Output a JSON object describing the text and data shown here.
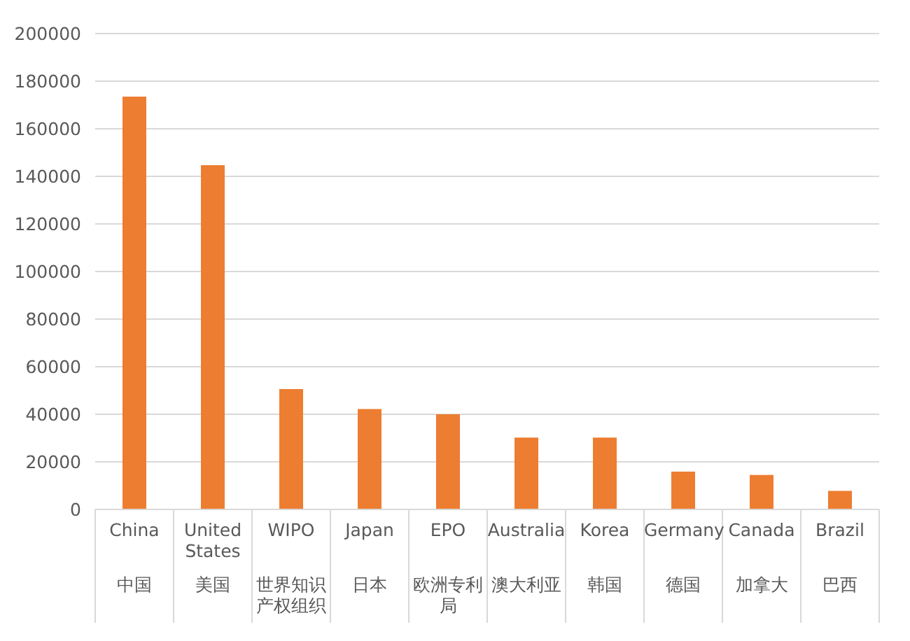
{
  "chart_data": {
    "type": "bar",
    "categories": [
      "China\n中国",
      "United States\n美国",
      "WIPO\n世界知识产权组织",
      "Japan\n日本",
      "EPO\n欧洲专利局",
      "Australia\n澳大利亚",
      "Korea\n韩国",
      "Germany\n德国",
      "Canada\n加拿大",
      "Brazil\n巴西"
    ],
    "values": [
      173500,
      144700,
      50600,
      42200,
      40000,
      30200,
      30200,
      15900,
      14500,
      7800
    ],
    "color": "#ed7d31",
    "ylim": [
      0,
      200000
    ],
    "yticks": [
      0,
      20000,
      40000,
      60000,
      80000,
      100000,
      120000,
      140000,
      160000,
      180000,
      200000
    ],
    "grid": "y"
  }
}
